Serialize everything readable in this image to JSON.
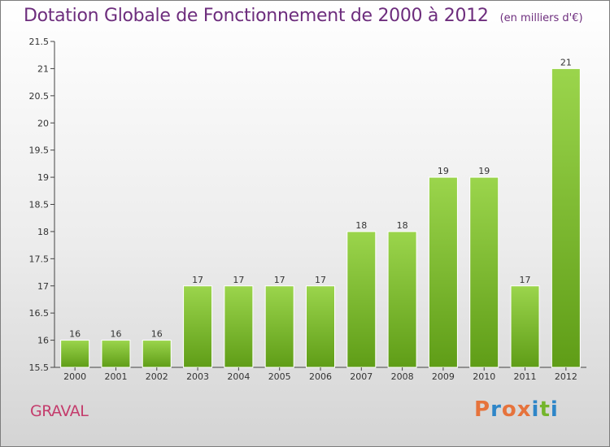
{
  "header": {
    "title": "Dotation Globale de Fonctionnement de 2000 à 2012",
    "subtitle": "(en milliers d'€)"
  },
  "footer": {
    "commune": "GRAVAL",
    "logo_text": "Proxiti"
  },
  "colors": {
    "title": "#6d2d7d",
    "commune": "#c43c6c",
    "bar_top": "#9bd54c",
    "bar_bottom": "#5f9d17",
    "logo_letters": [
      "#e6733c",
      "#2e86c8",
      "#e6733c",
      "#e6733c",
      "#2e86c8",
      "#74b52c",
      "#2e86c8"
    ]
  },
  "chart_data": {
    "type": "bar",
    "categories": [
      "2000",
      "2001",
      "2002",
      "2003",
      "2004",
      "2005",
      "2006",
      "2007",
      "2008",
      "2009",
      "2010",
      "2011",
      "2012"
    ],
    "values": [
      16,
      16,
      16,
      17,
      17,
      17,
      17,
      18,
      18,
      19,
      19,
      17,
      21
    ],
    "data_labels": [
      "16",
      "16",
      "16",
      "17",
      "17",
      "17",
      "17",
      "18",
      "18",
      "19",
      "19",
      "17",
      "21"
    ],
    "ylim": [
      15.5,
      21.5
    ],
    "yticks": [
      15.5,
      16,
      16.5,
      17,
      17.5,
      18,
      18.5,
      19,
      19.5,
      20,
      20.5,
      21,
      21.5
    ],
    "ytick_labels": [
      "15.5",
      "16",
      "16.5",
      "17",
      "17.5",
      "18",
      "18.5",
      "19",
      "19.5",
      "20",
      "20.5",
      "21",
      "21.5"
    ],
    "grid": false,
    "legend": "none",
    "xlabel": "",
    "ylabel": ""
  }
}
